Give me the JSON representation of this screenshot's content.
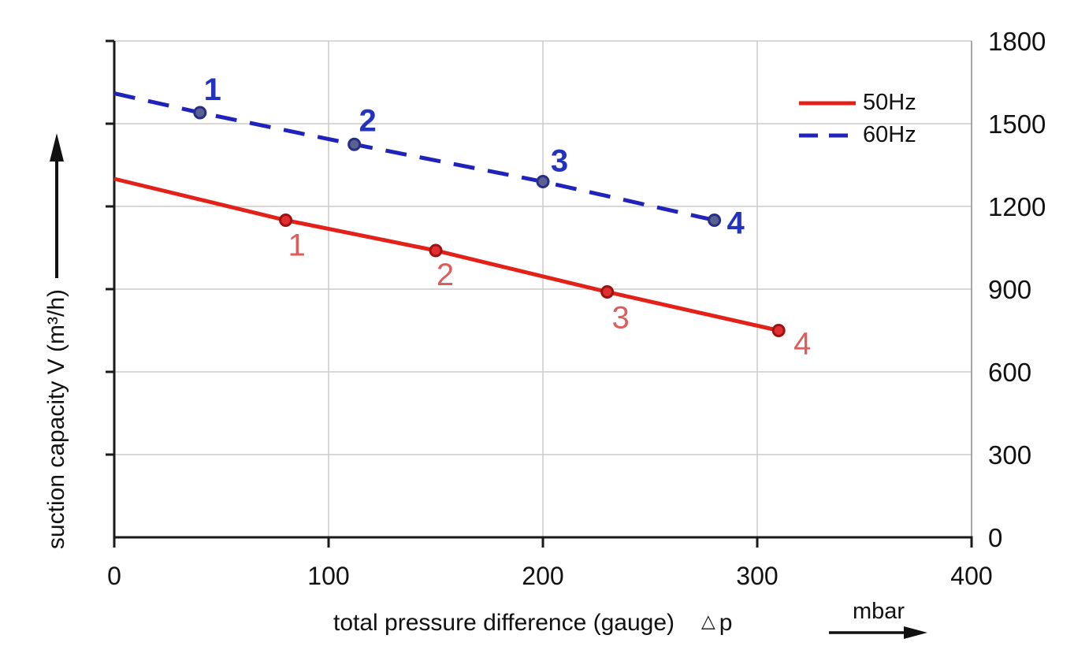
{
  "colors": {
    "background": "#ffffff",
    "axis": "#1a1a1a",
    "grid": "#cccccc",
    "plot_right_border": "#8a8a8a",
    "tick_label": "#111111",
    "red_line": "#e32119",
    "red_point_label": "#dd5c5c",
    "red_marker_fill": "#e12f2f",
    "red_marker_stroke": "#9c1212",
    "blue_line": "#2023bb",
    "blue_point_label": "#2433bd",
    "blue_marker_fill": "#5a6191",
    "blue_marker_stroke": "#272e85"
  },
  "axes": {
    "x": {
      "label": "total pressure difference (gauge)",
      "symbol": "△",
      "symbol_var": "p",
      "unit": "mbar",
      "tick_labels": [
        "0",
        "100",
        "200",
        "300",
        "400"
      ]
    },
    "y": {
      "label": "suction capacity V (m³/h)",
      "tick_labels": [
        "0",
        "300",
        "600",
        "900",
        "1200",
        "1500",
        "1800"
      ]
    }
  },
  "legend": [
    {
      "label": "50Hz",
      "color": "#e32119",
      "style": "solid"
    },
    {
      "label": "60Hz",
      "color": "#2023bb",
      "style": "dashed"
    }
  ],
  "chart_data": {
    "type": "line",
    "title": "",
    "xlabel": "total pressure difference (gauge) △p",
    "x_unit": "mbar",
    "ylabel": "suction capacity V (m³/h)",
    "xlim": [
      0,
      400
    ],
    "ylim": [
      0,
      1800
    ],
    "x_ticks": [
      0,
      100,
      200,
      300,
      400
    ],
    "y_ticks": [
      0,
      300,
      600,
      900,
      1200,
      1500,
      1800
    ],
    "y_tick_side": "right",
    "grid": true,
    "legend_position": "top-right",
    "series": [
      {
        "name": "50Hz",
        "style": "solid",
        "color": "#e32119",
        "label_color": "#dd5c5c",
        "label_weight": "normal",
        "marker_fill": "#e12f2f",
        "marker_stroke": "#9c1212",
        "points": [
          [
            0,
            1300
          ],
          [
            80,
            1150
          ],
          [
            150,
            1040
          ],
          [
            230,
            890
          ],
          [
            310,
            750
          ]
        ],
        "markers": [
          {
            "label": "1",
            "x": 80,
            "y": 1150,
            "dx": 14,
            "dy": 31
          },
          {
            "label": "2",
            "x": 150,
            "y": 1040,
            "dx": 12,
            "dy": 30
          },
          {
            "label": "3",
            "x": 230,
            "y": 890,
            "dx": 17,
            "dy": 32
          },
          {
            "label": "4",
            "x": 310,
            "y": 750,
            "dx": 30,
            "dy": 16
          }
        ]
      },
      {
        "name": "60Hz",
        "style": "dashed",
        "color": "#2023bb",
        "label_color": "#2433bd",
        "label_weight": "bold",
        "marker_fill": "#5a6191",
        "marker_stroke": "#272e85",
        "points": [
          [
            0,
            1610
          ],
          [
            40,
            1540
          ],
          [
            112,
            1425
          ],
          [
            200,
            1290
          ],
          [
            280,
            1150
          ]
        ],
        "markers": [
          {
            "label": "1",
            "x": 40,
            "y": 1540,
            "dx": 16,
            "dy": -30
          },
          {
            "label": "2",
            "x": 112,
            "y": 1425,
            "dx": 17,
            "dy": -31
          },
          {
            "label": "3",
            "x": 200,
            "y": 1290,
            "dx": 21,
            "dy": -27
          },
          {
            "label": "4",
            "x": 280,
            "y": 1150,
            "dx": 27,
            "dy": 3
          }
        ]
      }
    ]
  }
}
